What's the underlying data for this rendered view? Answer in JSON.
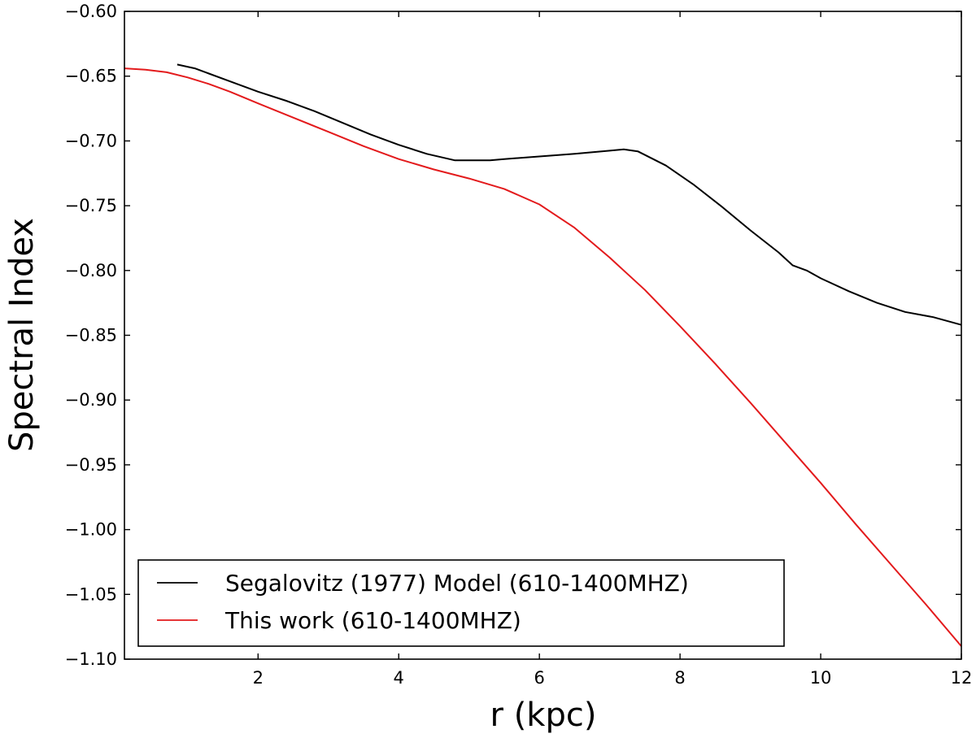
{
  "chart_data": {
    "type": "line",
    "title": "",
    "xlabel": "r (kpc)",
    "ylabel": "Spectral Index",
    "xlim": [
      0.1,
      12.0
    ],
    "ylim": [
      -1.1,
      -0.6
    ],
    "grid": false,
    "legend_position": "lower-left",
    "xticks": [
      {
        "value": 2,
        "label": "2"
      },
      {
        "value": 4,
        "label": "4"
      },
      {
        "value": 6,
        "label": "6"
      },
      {
        "value": 8,
        "label": "8"
      },
      {
        "value": 10,
        "label": "10"
      },
      {
        "value": 12,
        "label": "12"
      }
    ],
    "yticks": [
      {
        "value": -0.6,
        "label": "−0.60"
      },
      {
        "value": -0.65,
        "label": "−0.65"
      },
      {
        "value": -0.7,
        "label": "−0.70"
      },
      {
        "value": -0.75,
        "label": "−0.75"
      },
      {
        "value": -0.8,
        "label": "−0.80"
      },
      {
        "value": -0.85,
        "label": "−0.85"
      },
      {
        "value": -0.9,
        "label": "−0.90"
      },
      {
        "value": -0.95,
        "label": "−0.95"
      },
      {
        "value": -1.0,
        "label": "−1.00"
      },
      {
        "value": -1.05,
        "label": "−1.05"
      },
      {
        "value": -1.1,
        "label": "−1.10"
      }
    ],
    "series": [
      {
        "name": "Segalovitz (1977) Model (610-1400MHZ)",
        "color": "#000000",
        "x": [
          0.85,
          1.1,
          1.3,
          1.6,
          2.0,
          2.4,
          2.8,
          3.2,
          3.6,
          4.0,
          4.4,
          4.8,
          5.3,
          5.5,
          6.0,
          6.5,
          7.0,
          7.2,
          7.4,
          7.8,
          8.2,
          8.6,
          9.0,
          9.4,
          9.6,
          9.8,
          10.0,
          10.4,
          10.8,
          11.2,
          11.6,
          12.0
        ],
        "y": [
          -0.641,
          -0.644,
          -0.648,
          -0.654,
          -0.662,
          -0.669,
          -0.677,
          -0.686,
          -0.695,
          -0.703,
          -0.71,
          -0.715,
          -0.715,
          -0.714,
          -0.712,
          -0.71,
          -0.7075,
          -0.7065,
          -0.708,
          -0.719,
          -0.734,
          -0.751,
          -0.769,
          -0.786,
          -0.796,
          -0.8,
          -0.806,
          -0.816,
          -0.825,
          -0.832,
          -0.836,
          -0.842
        ]
      },
      {
        "name": "This work (610-1400MHZ)",
        "color": "#e31a1c",
        "x": [
          0.1,
          0.4,
          0.7,
          1.0,
          1.3,
          1.6,
          2.0,
          2.5,
          3.0,
          3.5,
          4.0,
          4.5,
          5.0,
          5.5,
          6.0,
          6.5,
          7.0,
          7.5,
          8.0,
          8.5,
          9.0,
          9.5,
          10.0,
          10.5,
          11.0,
          11.5,
          12.0
        ],
        "y": [
          -0.644,
          -0.645,
          -0.647,
          -0.651,
          -0.656,
          -0.662,
          -0.671,
          -0.682,
          -0.693,
          -0.704,
          -0.714,
          -0.722,
          -0.729,
          -0.737,
          -0.749,
          -0.767,
          -0.79,
          -0.815,
          -0.843,
          -0.872,
          -0.902,
          -0.933,
          -0.964,
          -0.996,
          -1.027,
          -1.058,
          -1.09
        ]
      }
    ]
  }
}
